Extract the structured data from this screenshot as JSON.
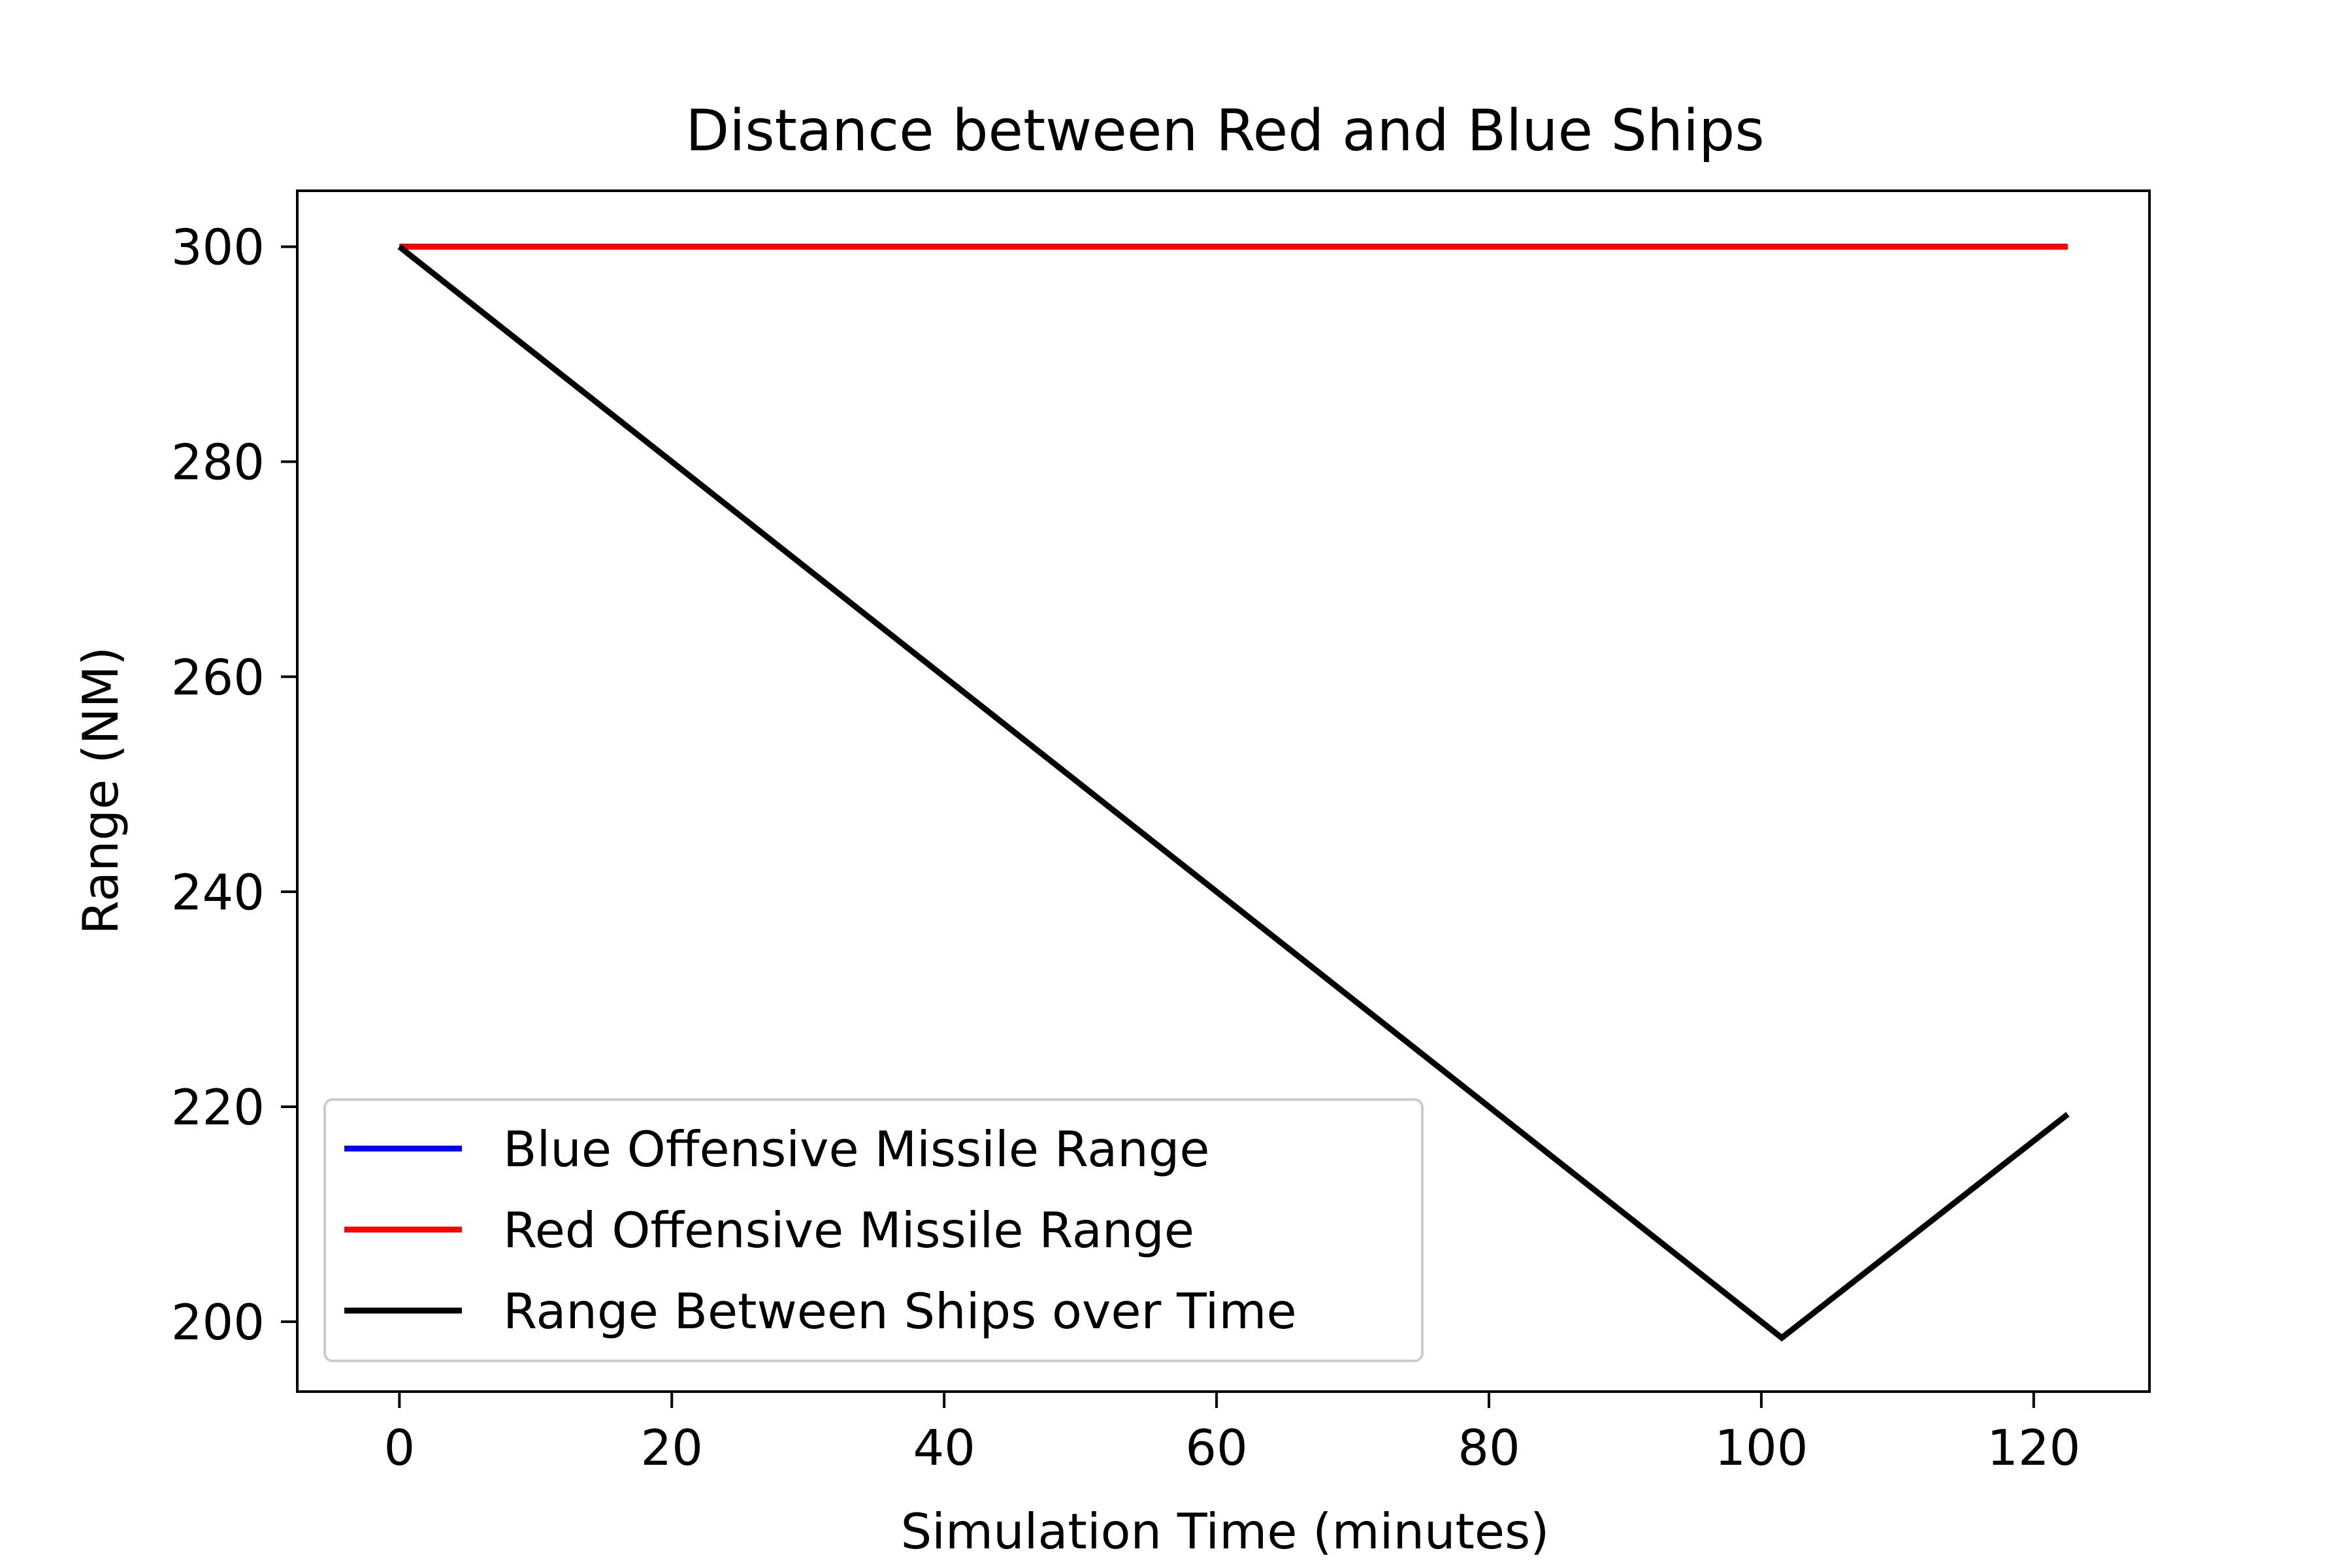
{
  "chart_data": {
    "type": "line",
    "title": "Distance between Red and Blue Ships",
    "xlabel": "Simulation Time (minutes)",
    "ylabel": "Range (NM)",
    "xlim": [
      -7.5,
      128.5
    ],
    "ylim": [
      193.5,
      305.2
    ],
    "xticks": [
      0,
      20,
      40,
      60,
      80,
      100,
      120
    ],
    "yticks": [
      200,
      220,
      240,
      260,
      280,
      300
    ],
    "grid": false,
    "legend_position": "lower-left",
    "series": [
      {
        "name": "Blue Offensive Missile Range",
        "color": "#0000ff",
        "x": [
          0,
          122.5
        ],
        "y": [
          300,
          300
        ]
      },
      {
        "name": "Red Offensive Missile Range",
        "color": "#ff0000",
        "x": [
          0,
          122.5
        ],
        "y": [
          300,
          300
        ]
      },
      {
        "name": "Range Between Ships over Time",
        "color": "#000000",
        "x": [
          0,
          101.5,
          122.5
        ],
        "y": [
          300,
          198.5,
          219.3
        ]
      }
    ]
  }
}
